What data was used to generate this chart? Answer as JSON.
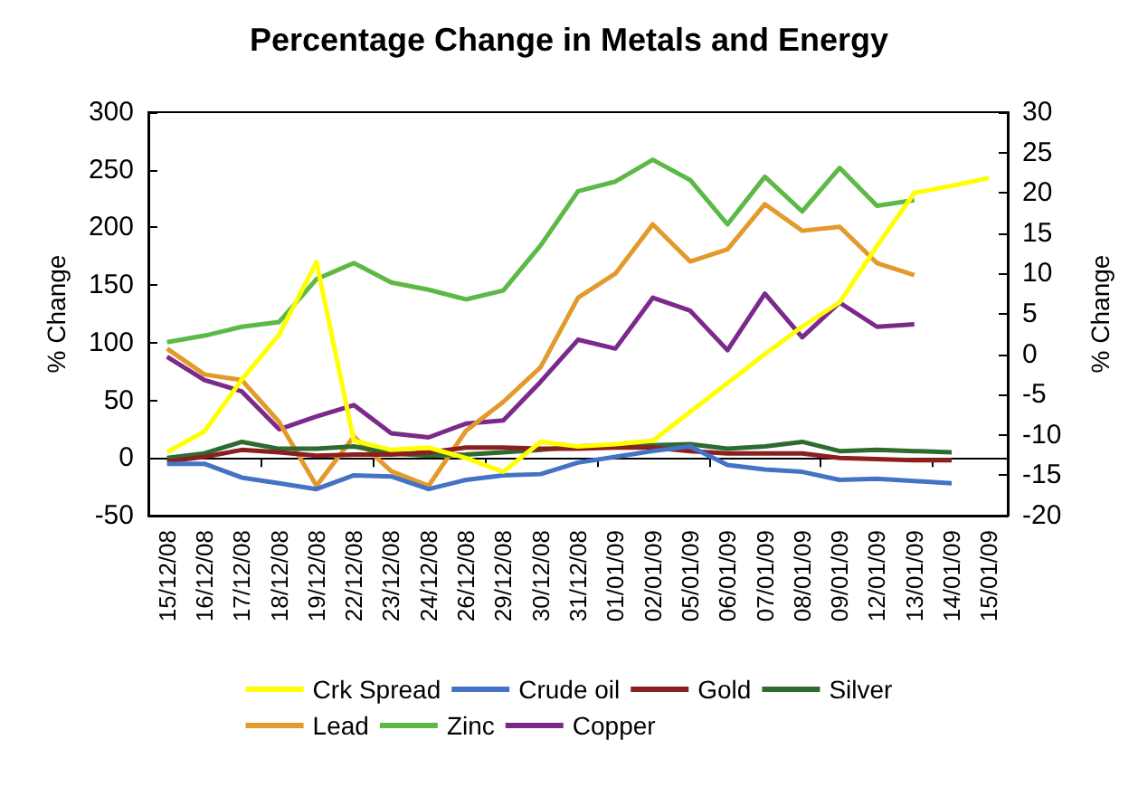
{
  "chart_data": {
    "type": "line",
    "title": "Percentage Change in Metals and Energy",
    "ylabel": "% Change",
    "y2label": "% Change",
    "categories": [
      "15/12/08",
      "16/12/08",
      "17/12/08",
      "18/12/08",
      "19/12/08",
      "22/12/08",
      "23/12/08",
      "24/12/08",
      "26/12/08",
      "29/12/08",
      "30/12/08",
      "31/12/08",
      "01/01/09",
      "02/01/09",
      "05/01/09",
      "06/01/09",
      "07/01/09",
      "08/01/09",
      "09/01/09",
      "12/01/09",
      "13/01/09",
      "14/01/09",
      "15/01/09"
    ],
    "series": [
      {
        "name": "Crk Spread",
        "color": "#ffff00",
        "values": [
          5,
          23,
          68,
          107,
          170,
          15,
          7,
          9,
          0,
          -12,
          14,
          10,
          12,
          15,
          40,
          65,
          90,
          114,
          135,
          184,
          230,
          236,
          243
        ]
      },
      {
        "name": "Crude oil",
        "color": "#4472c4",
        "values": [
          -5,
          -5,
          -17,
          -22,
          -27,
          -15,
          -16,
          -27,
          -19,
          -15,
          -14,
          -4,
          1,
          6,
          10,
          -6,
          -10,
          -12,
          -19,
          -18,
          -20,
          -22,
          null
        ]
      },
      {
        "name": "Gold",
        "color": "#8b1f1f",
        "values": [
          -3,
          1,
          7,
          5,
          2,
          3,
          3,
          5,
          9,
          9,
          8,
          8,
          9,
          9,
          6,
          4,
          4,
          4,
          0,
          -1,
          -2,
          -2,
          null
        ]
      },
      {
        "name": "Silver",
        "color": "#2e6b30",
        "values": [
          0,
          4,
          14,
          8,
          8,
          10,
          4,
          2,
          3,
          5,
          7,
          10,
          11,
          11,
          12,
          8,
          10,
          14,
          6,
          7,
          6,
          5,
          null
        ]
      },
      {
        "name": "Lead",
        "color": "#e39a2c",
        "axis": "y2",
        "values": [
          0.7,
          -2.5,
          -3.2,
          -8.4,
          -16.3,
          -10.2,
          -14.5,
          -16.3,
          -9.5,
          -5.9,
          -1.6,
          7.0,
          10.0,
          16.1,
          11.5,
          13.0,
          18.6,
          15.3,
          15.8,
          11.3,
          9.8,
          null,
          null
        ]
      },
      {
        "name": "Zinc",
        "color": "#5cb946",
        "axis": "y2",
        "values": [
          1.5,
          2.3,
          3.4,
          4.0,
          9.3,
          11.3,
          8.9,
          8.0,
          6.8,
          7.9,
          13.5,
          20.2,
          21.4,
          24.1,
          21.6,
          16.1,
          22.0,
          17.7,
          23.1,
          18.4,
          19.1,
          null,
          null
        ]
      },
      {
        "name": "Copper",
        "color": "#7b2a8c",
        "axis": "y2",
        "values": [
          -0.3,
          -3.2,
          -4.6,
          -9.3,
          -7.7,
          -6.3,
          -9.8,
          -10.3,
          -8.6,
          -8.2,
          -3.4,
          1.8,
          0.7,
          7.0,
          5.4,
          0.5,
          7.5,
          2.1,
          6.4,
          3.4,
          3.7,
          null,
          null
        ]
      }
    ],
    "ylim": [
      -50,
      300
    ],
    "yticks": [
      -50,
      0,
      50,
      100,
      150,
      200,
      250,
      300
    ],
    "y2lim": [
      -20,
      30
    ],
    "y2ticks": [
      -20,
      -15,
      -10,
      -5,
      0,
      5,
      10,
      15,
      20,
      25,
      30
    ],
    "legend": "bottom",
    "marker": "none",
    "line_style": "solid"
  }
}
